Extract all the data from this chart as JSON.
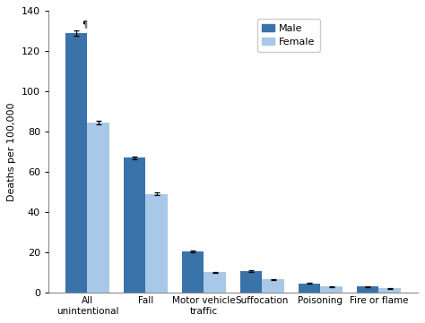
{
  "categories": [
    "All\nunintentional",
    "Fall",
    "Motor vehicle\ntraffic",
    "Suffocation",
    "Poisoning",
    "Fire or flame"
  ],
  "male_values": [
    129.0,
    67.0,
    20.5,
    10.5,
    4.5,
    3.0
  ],
  "female_values": [
    84.5,
    49.0,
    10.0,
    6.5,
    3.0,
    2.0
  ],
  "male_errors": [
    1.2,
    0.8,
    0.4,
    0.4,
    0.3,
    0.2
  ],
  "female_errors": [
    0.8,
    0.6,
    0.3,
    0.3,
    0.2,
    0.15
  ],
  "male_color": "#3A72AA",
  "female_color": "#A8C8E8",
  "ylabel": "Deaths per 100,000",
  "ylim": [
    0,
    140
  ],
  "yticks": [
    0,
    20,
    40,
    60,
    80,
    100,
    120,
    140
  ],
  "bar_width": 0.38,
  "legend_labels": [
    "Male",
    "Female"
  ],
  "annotation": "¶",
  "background_color": "#ffffff",
  "spine_color": "#888888"
}
